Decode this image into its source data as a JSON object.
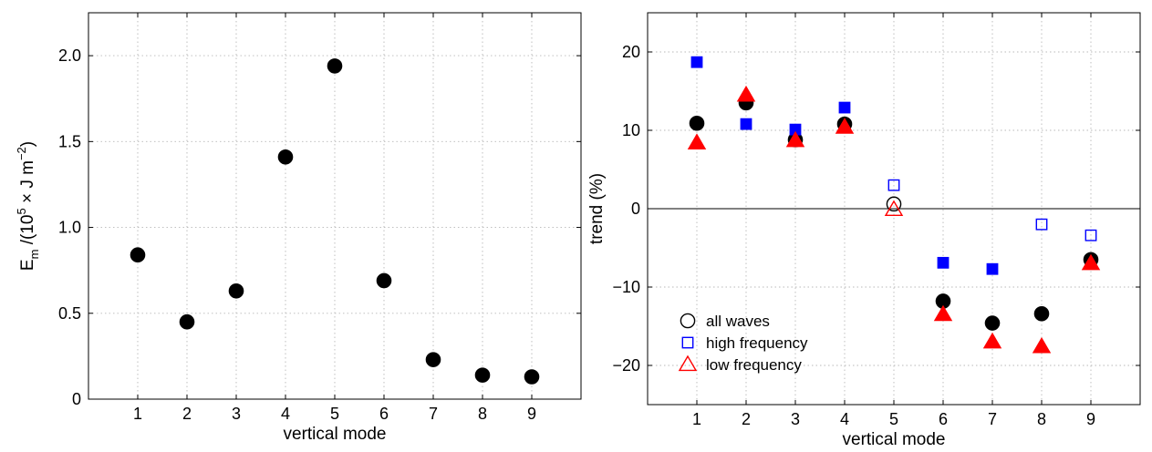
{
  "chart_data": [
    {
      "type": "scatter",
      "title": "",
      "xlabel": "vertical mode",
      "ylabel": {
        "base": "E",
        "sub": "m",
        "mid": " /(10",
        "sup1": "5",
        "mid2": " × J m",
        "sup2": "−2",
        "end": ")"
      },
      "xlim": [
        0,
        10
      ],
      "ylim": [
        0,
        2.25
      ],
      "grid": true,
      "xticks": [
        1,
        2,
        3,
        4,
        5,
        6,
        7,
        8,
        9
      ],
      "xtick_labels": [
        "1",
        "2",
        "3",
        "4",
        "5",
        "6",
        "7",
        "8",
        "9"
      ],
      "yticks": [
        0,
        0.5,
        1.0,
        1.5,
        2.0
      ],
      "ytick_labels": [
        "0",
        "0.5",
        "1.0",
        "1.5",
        "2.0"
      ],
      "series": [
        {
          "marker": "circle",
          "filled": true,
          "color": "#000000",
          "x": [
            1,
            2,
            3,
            4,
            5,
            6,
            7,
            8,
            9
          ],
          "y": [
            0.84,
            0.45,
            0.63,
            1.41,
            1.94,
            0.69,
            0.23,
            0.14,
            0.13
          ]
        }
      ]
    },
    {
      "type": "scatter",
      "title": "",
      "xlabel": "vertical mode",
      "ylabel": "trend (%)",
      "xlim": [
        0,
        10
      ],
      "ylim": [
        -25,
        25
      ],
      "grid": true,
      "zero_line": true,
      "legend_position": "bottom-left",
      "xticks": [
        1,
        2,
        3,
        4,
        5,
        6,
        7,
        8,
        9
      ],
      "xtick_labels": [
        "1",
        "2",
        "3",
        "4",
        "5",
        "6",
        "7",
        "8",
        "9"
      ],
      "yticks": [
        -20,
        -10,
        0,
        10,
        20
      ],
      "ytick_labels": [
        "−20",
        "−10",
        "0",
        "10",
        "20"
      ],
      "series": [
        {
          "name": "all waves",
          "marker": "circle",
          "color": "#000000",
          "x": [
            1,
            2,
            3,
            4,
            5,
            6,
            7,
            8,
            9
          ],
          "y": [
            10.9,
            13.5,
            8.8,
            10.8,
            0.6,
            -11.8,
            -14.6,
            -13.4,
            -6.5
          ],
          "filled": [
            true,
            true,
            true,
            true,
            false,
            true,
            true,
            true,
            true
          ]
        },
        {
          "name": "high frequency",
          "marker": "square",
          "color": "#0000ff",
          "x": [
            1,
            2,
            3,
            4,
            5,
            6,
            7,
            8,
            9
          ],
          "y": [
            18.7,
            10.8,
            10.1,
            12.9,
            3.0,
            -6.9,
            -7.7,
            -2.0,
            -3.4
          ],
          "filled": [
            true,
            true,
            true,
            true,
            false,
            true,
            true,
            false,
            false
          ]
        },
        {
          "name": "low frequency",
          "marker": "triangle",
          "color": "#ff0000",
          "x": [
            1,
            2,
            3,
            4,
            5,
            6,
            7,
            8,
            9
          ],
          "y": [
            8.4,
            14.5,
            8.7,
            10.4,
            -0.1,
            -13.5,
            -17.0,
            -17.6,
            -7.0
          ],
          "filled": [
            true,
            true,
            true,
            true,
            false,
            true,
            true,
            true,
            true
          ]
        }
      ]
    }
  ]
}
